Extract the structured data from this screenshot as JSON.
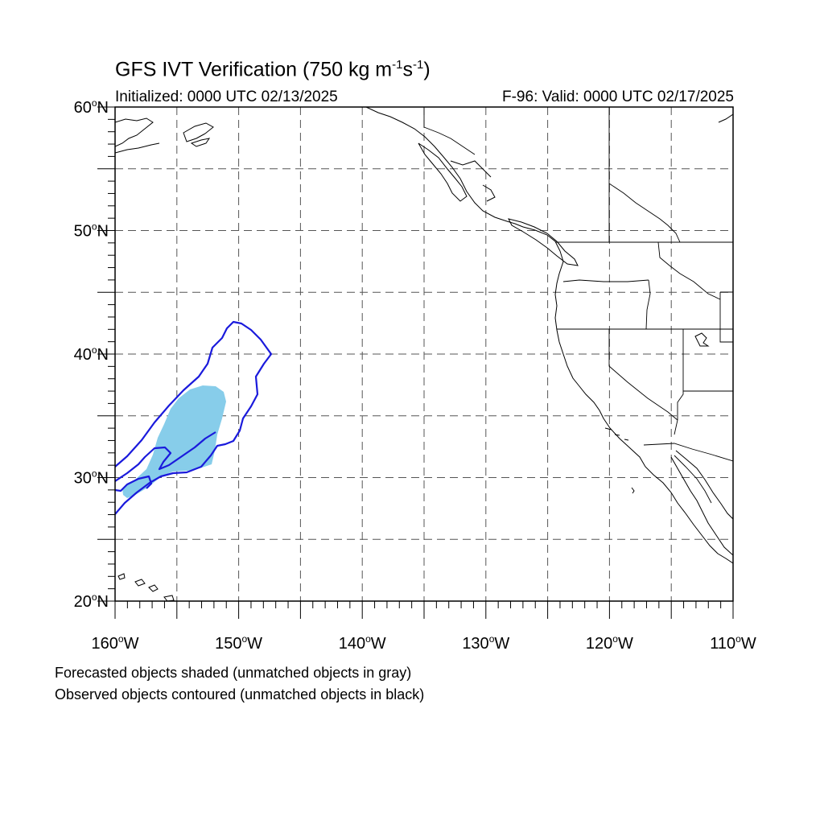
{
  "title": {
    "main": "GFS IVT Verification (750 kg m",
    "sup1": "-1",
    "mid": "s",
    "sup2": "-1",
    "end": ")"
  },
  "subtitle_left": "Initialized: 0000 UTC 02/13/2025",
  "subtitle_right": "F-96: Valid: 0000 UTC 02/17/2025",
  "notes": [
    "Forecasted objects shaded (unmatched objects in gray)",
    "Observed objects contoured (unmatched objects in black)"
  ],
  "map": {
    "lon_range": [
      -160,
      -110
    ],
    "lat_range": [
      20,
      60
    ],
    "gridlines": "dashed, every 5°",
    "colors": {
      "forecast_fill": "#87cdea",
      "observed_contour": "#1a1adc",
      "coastline": "#000000",
      "grid": "#555555"
    },
    "lat_labels": [
      {
        "value": 60,
        "deg": "60",
        "hem": "N"
      },
      {
        "value": 50,
        "deg": "50",
        "hem": "N"
      },
      {
        "value": 40,
        "deg": "40",
        "hem": "N"
      },
      {
        "value": 30,
        "deg": "30",
        "hem": "N"
      },
      {
        "value": 20,
        "deg": "20",
        "hem": "N"
      }
    ],
    "lon_labels": [
      {
        "value": -160,
        "deg": "160",
        "hem": "W"
      },
      {
        "value": -150,
        "deg": "150",
        "hem": "W"
      },
      {
        "value": -140,
        "deg": "140",
        "hem": "W"
      },
      {
        "value": -130,
        "deg": "130",
        "hem": "W"
      },
      {
        "value": -120,
        "deg": "120",
        "hem": "W"
      },
      {
        "value": -110,
        "deg": "110",
        "hem": "W"
      }
    ]
  }
}
